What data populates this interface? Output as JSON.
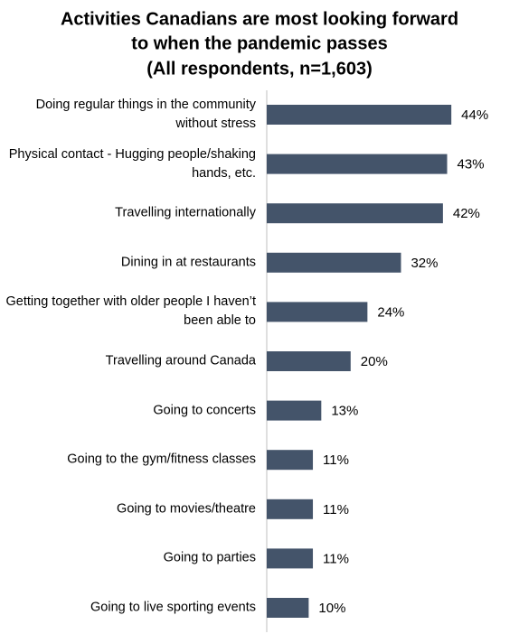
{
  "chart_data": {
    "type": "bar",
    "orientation": "horizontal",
    "title": [
      "Activities Canadians are most looking forward",
      "to when the pandemic passes",
      "(All respondents, n=1,603)"
    ],
    "categories": [
      "Doing regular things in the community without stress",
      "Physical contact - Hugging people/shaking hands, etc.",
      "Travelling internationally",
      "Dining in at restaurants",
      "Getting together with older people I haven’t been able to",
      "Travelling around Canada",
      "Going to concerts",
      "Going to the gym/fitness classes",
      "Going to movies/theatre",
      "Going to parties",
      "Going to live sporting events"
    ],
    "values": [
      44,
      43,
      42,
      32,
      24,
      20,
      13,
      11,
      11,
      11,
      10
    ],
    "value_labels": [
      "44%",
      "43%",
      "42%",
      "32%",
      "24%",
      "20%",
      "13%",
      "11%",
      "11%",
      "11%",
      "10%"
    ],
    "color": "#44546a",
    "xlim": [
      0,
      50
    ]
  }
}
